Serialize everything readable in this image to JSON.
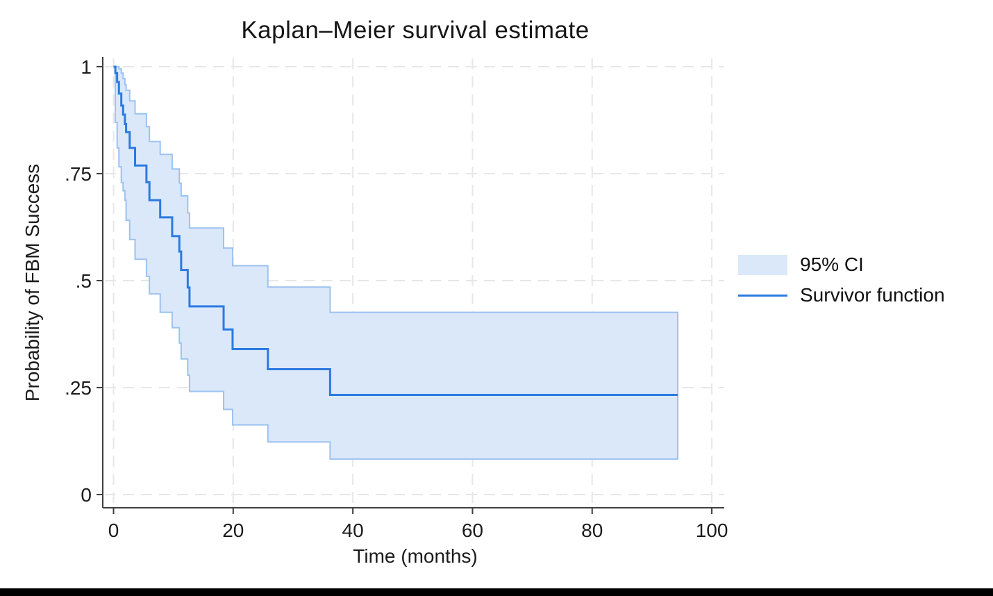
{
  "page": {
    "background": "#ffffff",
    "bottom_bar_color": "#000000"
  },
  "chart_data": {
    "type": "line",
    "subtype": "kaplan-meier-step-with-ci-band",
    "title": "Kaplan–Meier survival estimate",
    "xlabel": "Time (months)",
    "ylabel": "Probability of FBM Success",
    "xlim": [
      0,
      100
    ],
    "ylim": [
      0,
      1
    ],
    "xticks": [
      0,
      20,
      40,
      60,
      80,
      100
    ],
    "yticks": [
      0,
      0.25,
      0.5,
      0.75,
      1
    ],
    "ytick_labels": [
      "0",
      ".25",
      ".5",
      ".75",
      "1"
    ],
    "grid": "dashed gridlines at every x and y tick",
    "legend": {
      "position": "right",
      "items": [
        {
          "label": "95% CI",
          "swatch": "filled-band"
        },
        {
          "label": "Survivor function",
          "swatch": "line"
        }
      ]
    },
    "start_time": 0,
    "end_time": 94.3,
    "event_times": [
      0.3,
      0.6,
      0.9,
      1.3,
      1.6,
      1.9,
      2.1,
      2.7,
      3.6,
      5.5,
      6,
      7.8,
      9.8,
      11,
      11.3,
      12.4,
      12.7,
      18.4,
      19.9,
      25.8,
      36.2
    ],
    "series": [
      {
        "name": "Survivor function",
        "type": "step-line",
        "start_value": 1,
        "values": [
          0.985,
          0.964,
          0.937,
          0.909,
          0.888,
          0.866,
          0.847,
          0.81,
          0.769,
          0.73,
          0.688,
          0.648,
          0.604,
          0.568,
          0.525,
          0.484,
          0.44,
          0.386,
          0.34,
          0.293,
          0.233
        ]
      },
      {
        "name": "95% CI",
        "type": "band",
        "start_value": 1,
        "upper": [
          1,
          1,
          0.995,
          0.985,
          0.972,
          0.958,
          0.945,
          0.92,
          0.89,
          0.86,
          0.825,
          0.795,
          0.761,
          0.728,
          0.698,
          0.658,
          0.623,
          0.576,
          0.535,
          0.485,
          0.426
        ],
        "lower": [
          0.87,
          0.81,
          0.766,
          0.729,
          0.71,
          0.688,
          0.641,
          0.596,
          0.55,
          0.51,
          0.469,
          0.426,
          0.39,
          0.354,
          0.317,
          0.279,
          0.241,
          0.199,
          0.163,
          0.123,
          0.083
        ]
      }
    ],
    "style": {
      "line_color": "#2b7ae0",
      "band_fill": "#dbe8fa",
      "band_edge": "#9cc2f0",
      "axis_color": "#3f3f3f",
      "grid_color": "#e7e7e7",
      "text_color": "#1b1b1b"
    }
  }
}
